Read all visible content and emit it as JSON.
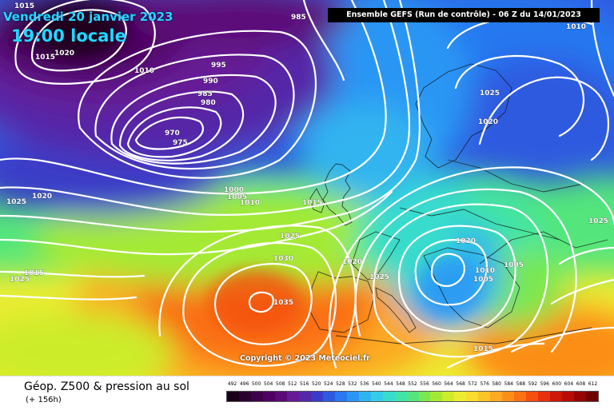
{
  "title": {
    "date": "Vendredi 20 janvier 2023",
    "time": "19:00 locale"
  },
  "header": {
    "run_info": "Ensemble GEFS  (Run de contrôle)  -  06 Z du 14/01/2023"
  },
  "copyright": "Copyright © 2023 Meteociel.fr",
  "footer": {
    "title": "Géop. Z500 & pression au sol",
    "subtitle": "(+ 156h)"
  },
  "legend": {
    "values": [
      "492",
      "496",
      "500",
      "504",
      "508",
      "512",
      "516",
      "520",
      "524",
      "528",
      "532",
      "536",
      "540",
      "544",
      "548",
      "552",
      "556",
      "560",
      "564",
      "568",
      "572",
      "576",
      "580",
      "584",
      "588",
      "592",
      "596",
      "600",
      "604",
      "608",
      "612"
    ],
    "colors": [
      "#1a0018",
      "#2b0030",
      "#3c0048",
      "#4e0060",
      "#5c0a78",
      "#661a94",
      "#5528a8",
      "#3a3cc8",
      "#2e5ae0",
      "#2878f0",
      "#2a96f4",
      "#30b4f0",
      "#34cce8",
      "#38dccc",
      "#40e4a8",
      "#54e67c",
      "#7ae850",
      "#a4ea34",
      "#ccec2c",
      "#ecec30",
      "#f8dc30",
      "#fcc428",
      "#fcaa20",
      "#fc8e18",
      "#fa7014",
      "#f45010",
      "#e8300c",
      "#d01808",
      "#b80c06",
      "#960404",
      "#700000"
    ]
  },
  "isobar_labels": [
    {
      "id": "l1015a",
      "text": "1015"
    },
    {
      "id": "l1025a",
      "text": "1025"
    },
    {
      "id": "l1015b",
      "text": "1015"
    },
    {
      "id": "l1020a",
      "text": "1020"
    },
    {
      "id": "l985a",
      "text": "985"
    },
    {
      "id": "l1010a",
      "text": "1010"
    },
    {
      "id": "l995",
      "text": "995"
    },
    {
      "id": "l990",
      "text": "990"
    },
    {
      "id": "l985b",
      "text": "985"
    },
    {
      "id": "l980",
      "text": "980"
    },
    {
      "id": "l970",
      "text": "970"
    },
    {
      "id": "l975",
      "text": "975"
    },
    {
      "id": "l1010b",
      "text": "1010"
    },
    {
      "id": "l1025b",
      "text": "1025"
    },
    {
      "id": "l1020b",
      "text": "1020"
    },
    {
      "id": "l1020c",
      "text": "1020"
    },
    {
      "id": "l1025c",
      "text": "1025"
    },
    {
      "id": "l1025d",
      "text": "1025"
    },
    {
      "id": "l1015c",
      "text": "1015"
    },
    {
      "id": "l1000",
      "text": "1000"
    },
    {
      "id": "l1005a",
      "text": "1005"
    },
    {
      "id": "l1010c",
      "text": "1010"
    },
    {
      "id": "l1015d",
      "text": "1015"
    },
    {
      "id": "l1025e",
      "text": "1025"
    },
    {
      "id": "l1030",
      "text": "1030"
    },
    {
      "id": "l1035",
      "text": "1035"
    },
    {
      "id": "l1020d",
      "text": "1020"
    },
    {
      "id": "l1025f",
      "text": "1025"
    },
    {
      "id": "l1020e",
      "text": "1020"
    },
    {
      "id": "l1010d",
      "text": "1010"
    },
    {
      "id": "l1005b",
      "text": "1005"
    },
    {
      "id": "l1005c",
      "text": "1005"
    },
    {
      "id": "l1015e",
      "text": "1015"
    },
    {
      "id": "l1015f",
      "text": "1015"
    },
    {
      "id": "l1015g",
      "text": "1015"
    },
    {
      "id": "l1020f",
      "text": "1020"
    }
  ]
}
